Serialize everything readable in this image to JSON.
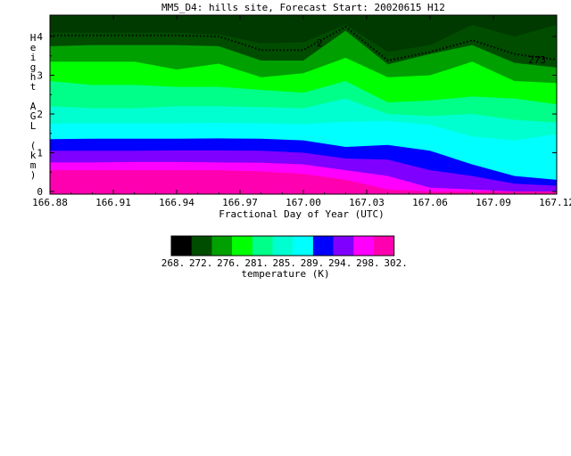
{
  "chart_data": {
    "type": "heatmap",
    "title": "MM5_D4: hills site,  Forecast Start: 20020615 H12",
    "xlabel": "Fractional Day of Year (UTC)",
    "ylabel": "Height AGL (km)",
    "ylabel_chars": [
      "H",
      "e",
      "i",
      "g",
      "h",
      "t",
      "",
      "A",
      "G",
      "L",
      "",
      "(",
      "k",
      "m",
      ")"
    ],
    "x_ticks": [
      "166.88",
      "166.91",
      "166.94",
      "166.97",
      "167.00",
      "167.03",
      "167.06",
      "167.09",
      "167.12"
    ],
    "y_ticks": [
      "0",
      "1",
      "2",
      "3",
      "4"
    ],
    "xlim": [
      166.88,
      167.12
    ],
    "ylim": [
      0,
      4.3
    ],
    "colorbar_label": "temperature (K)",
    "colorbar_ticks": [
      "268.",
      "272.",
      "276.",
      "281.",
      "285.",
      "289.",
      "294.",
      "298.",
      "302."
    ],
    "colorbar_colors": [
      "#000000",
      "#004d00",
      "#00a000",
      "#00ff00",
      "#00ff88",
      "#00ffd0",
      "#00ffff",
      "#0000ff",
      "#8000ff",
      "#ff00ff",
      "#ff00b0"
    ],
    "band_colors": [
      "#ff00b0",
      "#ff00ff",
      "#8000ff",
      "#0000ff",
      "#00ffff",
      "#00ffd0",
      "#00ff88",
      "#00ff00",
      "#00a000",
      "#004d00"
    ],
    "x": [
      166.88,
      166.9,
      166.92,
      166.94,
      166.96,
      166.98,
      167.0,
      167.02,
      167.04,
      167.06,
      167.08,
      167.1,
      167.12
    ],
    "band_tops_km": [
      [
        0.55,
        0.55,
        0.55,
        0.55,
        0.55,
        0.52,
        0.45,
        0.3,
        0.05,
        0.0,
        0.0,
        0.0,
        0.0
      ],
      [
        0.75,
        0.75,
        0.76,
        0.76,
        0.75,
        0.74,
        0.7,
        0.55,
        0.4,
        0.1,
        0.05,
        0.0,
        0.0
      ],
      [
        1.05,
        1.05,
        1.05,
        1.06,
        1.06,
        1.05,
        1.0,
        0.85,
        0.82,
        0.55,
        0.4,
        0.2,
        0.15
      ],
      [
        1.35,
        1.36,
        1.36,
        1.36,
        1.37,
        1.36,
        1.32,
        1.15,
        1.2,
        1.05,
        0.7,
        0.4,
        0.3
      ],
      [
        1.75,
        1.76,
        1.76,
        1.76,
        1.77,
        1.76,
        1.74,
        1.8,
        1.82,
        1.72,
        1.42,
        1.32,
        1.48
      ],
      [
        2.2,
        2.15,
        2.15,
        2.2,
        2.2,
        2.18,
        2.15,
        2.4,
        2.0,
        1.95,
        2.0,
        1.85,
        1.78
      ],
      [
        2.85,
        2.75,
        2.75,
        2.7,
        2.7,
        2.62,
        2.55,
        2.85,
        2.3,
        2.35,
        2.45,
        2.4,
        2.25
      ],
      [
        3.35,
        3.35,
        3.35,
        3.15,
        3.3,
        2.95,
        3.05,
        3.45,
        2.95,
        3.0,
        3.35,
        2.85,
        2.8
      ],
      [
        3.75,
        3.78,
        3.78,
        3.78,
        3.75,
        3.38,
        3.38,
        4.15,
        3.28,
        3.55,
        3.78,
        3.32,
        3.2
      ],
      [
        4.1,
        4.1,
        4.1,
        4.1,
        4.05,
        3.82,
        3.85,
        4.3,
        3.6,
        3.78,
        4.3,
        4.0,
        4.3
      ]
    ],
    "contour_273_km": [
      4.03,
      4.03,
      4.03,
      4.03,
      4.0,
      3.65,
      3.65,
      4.25,
      3.38,
      3.6,
      3.9,
      3.55,
      3.4
    ],
    "contour_label": "273",
    "contour_label_top": "2"
  }
}
